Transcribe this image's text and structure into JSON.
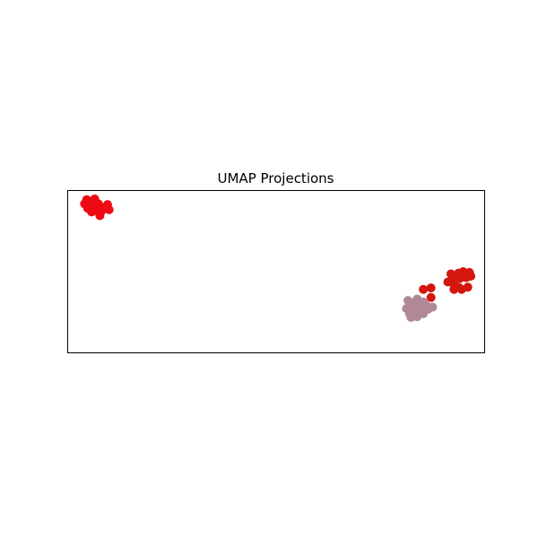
{
  "chart_data": {
    "type": "scatter",
    "title": "UMAP Projections",
    "xlabel": "",
    "ylabel": "",
    "xlim": [
      -6.8,
      6.8
    ],
    "ylim": [
      -5.5,
      5.5
    ],
    "grid": false,
    "legend": "none",
    "ticks": "none",
    "series": [
      {
        "color": "#ee0a14",
        "points": [
          [
            -6.18,
            4.88
          ],
          [
            -5.92,
            4.93
          ],
          [
            -6.25,
            4.6
          ],
          [
            -6.05,
            4.75
          ],
          [
            -5.8,
            4.6
          ],
          [
            -5.5,
            4.55
          ],
          [
            -6.15,
            4.3
          ],
          [
            -5.9,
            4.4
          ],
          [
            -5.45,
            4.2
          ],
          [
            -5.7,
            4.1
          ],
          [
            -6.02,
            4.05
          ],
          [
            -5.75,
            3.8
          ],
          [
            -5.6,
            4.35
          ],
          [
            -5.88,
            4.15
          ]
        ]
      },
      {
        "color": "#d4160e",
        "points": [
          [
            5.7,
            -0.15
          ],
          [
            5.95,
            -0.1
          ],
          [
            6.1,
            0.0
          ],
          [
            6.3,
            -0.05
          ],
          [
            5.85,
            -0.35
          ],
          [
            6.2,
            -0.4
          ],
          [
            6.35,
            -0.3
          ],
          [
            5.8,
            -0.55
          ],
          [
            6.0,
            -0.45
          ],
          [
            5.6,
            -0.7
          ],
          [
            5.95,
            -1.05
          ],
          [
            5.8,
            -1.2
          ],
          [
            6.05,
            -1.2
          ],
          [
            6.25,
            -1.05
          ],
          [
            4.8,
            -1.2
          ],
          [
            5.05,
            -1.1
          ],
          [
            5.05,
            -1.75
          ],
          [
            5.8,
            -0.85
          ]
        ]
      },
      {
        "color": "#b08898",
        "points": [
          [
            4.3,
            -1.95
          ],
          [
            4.6,
            -1.85
          ],
          [
            4.8,
            -2.05
          ],
          [
            4.4,
            -2.1
          ],
          [
            4.65,
            -2.35
          ],
          [
            4.25,
            -2.5
          ],
          [
            4.5,
            -2.45
          ],
          [
            4.9,
            -2.3
          ],
          [
            5.1,
            -2.4
          ],
          [
            4.35,
            -2.85
          ],
          [
            4.55,
            -2.7
          ],
          [
            4.8,
            -2.85
          ],
          [
            4.4,
            -3.1
          ],
          [
            4.6,
            -3.05
          ],
          [
            4.7,
            -2.6
          ],
          [
            4.95,
            -2.55
          ]
        ]
      }
    ]
  }
}
